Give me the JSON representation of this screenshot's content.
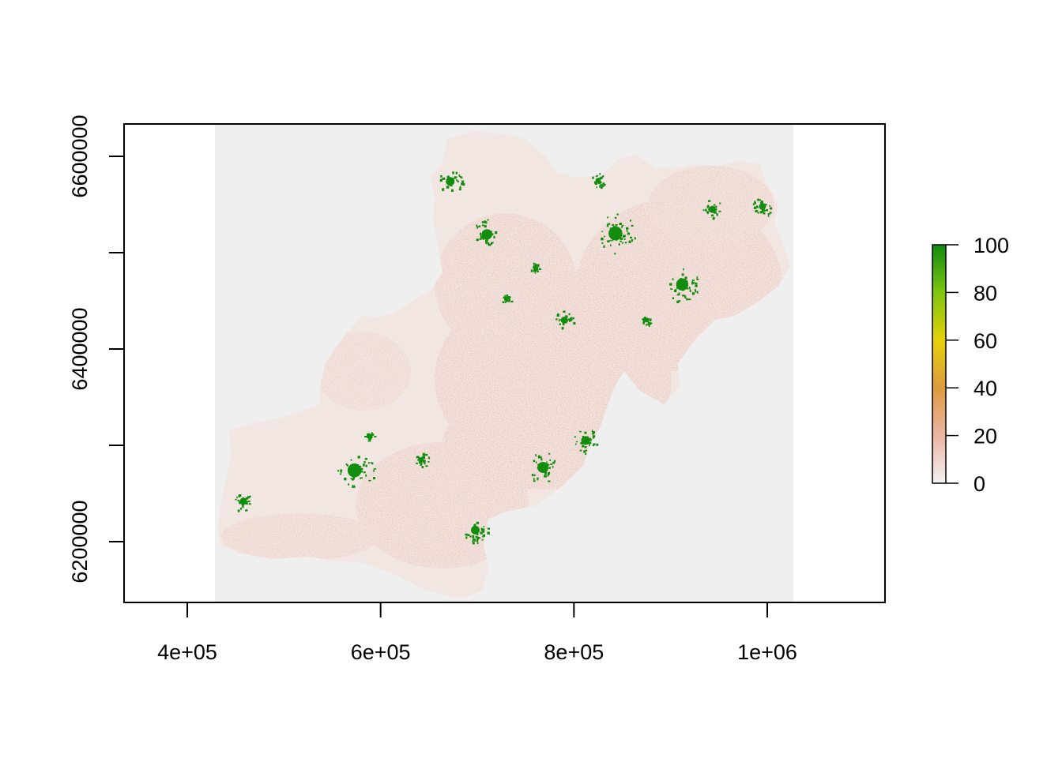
{
  "map": {
    "type": "raster",
    "x_axis": {
      "ticks": [
        400000,
        600000,
        800000,
        1000000
      ],
      "tick_labels": [
        "4e+05",
        "6e+05",
        "8e+05",
        "1e+06"
      ]
    },
    "y_axis": {
      "ticks": [
        6200000,
        6300000,
        6400000,
        6500000,
        6600000
      ],
      "labeled_ticks": [
        6200000,
        6400000,
        6600000
      ],
      "tick_labels": [
        "6200000",
        "6400000",
        "6600000"
      ]
    },
    "legend": {
      "position": "right",
      "values": [
        0,
        20,
        40,
        60,
        80,
        100
      ],
      "tick_labels": [
        "0",
        "20",
        "40",
        "60",
        "80",
        "100"
      ],
      "colors": [
        "#f2f2f2",
        "#ebb5a4",
        "#de9a3e",
        "#e5d10a",
        "#7ec50f",
        "#0f8a10"
      ]
    },
    "colors": {
      "background": "#efefef",
      "low": "#e9bfb1",
      "lowest": "#f3e7e4",
      "high": "#128d0d"
    },
    "cities": [
      {
        "x": 573000,
        "y": 6274000,
        "value": 100
      },
      {
        "x": 843000,
        "y": 6520000,
        "value": 100
      },
      {
        "x": 912000,
        "y": 6467000,
        "value": 95
      },
      {
        "x": 768000,
        "y": 6277000,
        "value": 92
      },
      {
        "x": 710000,
        "y": 6519000,
        "value": 90
      },
      {
        "x": 672000,
        "y": 6574000,
        "value": 85
      },
      {
        "x": 812000,
        "y": 6305000,
        "value": 85
      },
      {
        "x": 943000,
        "y": 6545000,
        "value": 80
      },
      {
        "x": 790000,
        "y": 6430000,
        "value": 80
      },
      {
        "x": 458000,
        "y": 6242000,
        "value": 80
      },
      {
        "x": 698000,
        "y": 6212000,
        "value": 85
      },
      {
        "x": 825000,
        "y": 6575000,
        "value": 75
      },
      {
        "x": 995000,
        "y": 6548000,
        "value": 80
      },
      {
        "x": 730000,
        "y": 6452000,
        "value": 70
      },
      {
        "x": 642000,
        "y": 6285000,
        "value": 75
      },
      {
        "x": 588000,
        "y": 6310000,
        "value": 70
      },
      {
        "x": 760000,
        "y": 6485000,
        "value": 70
      },
      {
        "x": 875000,
        "y": 6430000,
        "value": 70
      }
    ]
  }
}
